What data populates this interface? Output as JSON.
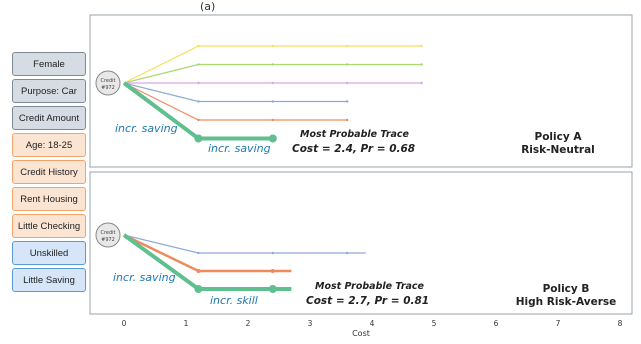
{
  "attributes": [
    {
      "label": "Female",
      "group": "gray"
    },
    {
      "label": "Purpose: Car",
      "group": "gray"
    },
    {
      "label": "Credit Amount",
      "group": "gray"
    },
    {
      "label": "Age: 18-25",
      "group": "orange"
    },
    {
      "label": "Credit History",
      "group": "orange"
    },
    {
      "label": "Rent Housing",
      "group": "orange"
    },
    {
      "label": "Little Checking",
      "group": "orange"
    },
    {
      "label": "Unskilled",
      "group": "blue"
    },
    {
      "label": "Little Saving",
      "group": "blue"
    }
  ],
  "top_text": "(a)",
  "panels": [
    {
      "node_label": [
        "Credit",
        "#972"
      ],
      "policy_line1": "Policy A",
      "policy_line2": "Risk-Neutral",
      "trace_title": "Most Probable Trace",
      "trace_cost": "Cost = 2.4, Pr = 0.68",
      "action1": "incr. saving",
      "action2": "incr. saving",
      "traces": [
        {
          "color": "#f2e25a",
          "points": [
            [
              0,
              0
            ],
            [
              1.2,
              -1
            ],
            [
              4.8,
              -1
            ]
          ]
        },
        {
          "color": "#a8d86e",
          "points": [
            [
              0,
              0
            ],
            [
              1.2,
              -0.5
            ],
            [
              4.8,
              -0.5
            ]
          ]
        },
        {
          "color": "#d9a6e0",
          "points": [
            [
              0,
              0
            ],
            [
              1.2,
              0
            ],
            [
              4.8,
              0
            ]
          ]
        },
        {
          "color": "#8fa8d8",
          "points": [
            [
              0,
              0
            ],
            [
              1.2,
              0.5
            ],
            [
              3.6,
              0.5
            ]
          ]
        },
        {
          "color": "#f08a5d",
          "points": [
            [
              0,
              0
            ],
            [
              1.2,
              1
            ],
            [
              3.6,
              1
            ]
          ]
        },
        {
          "color": "#5fbf8f",
          "points": [
            [
              0,
              0
            ],
            [
              1.2,
              1.5
            ],
            [
              2.4,
              1.5
            ]
          ],
          "highlight": true
        }
      ]
    },
    {
      "node_label": [
        "Credit",
        "#972"
      ],
      "policy_line1": "Policy B",
      "policy_line2": "High Risk-Averse",
      "trace_title": "Most Probable Trace",
      "trace_cost": "Cost = 2.7, Pr = 0.81",
      "action1": "incr. saving",
      "action2": "incr. skill",
      "traces": [
        {
          "color": "#8fa8d8",
          "points": [
            [
              0,
              0
            ],
            [
              1.2,
              0.5
            ],
            [
              3.9,
              0.5
            ]
          ]
        },
        {
          "color": "#f08a5d",
          "points": [
            [
              0,
              0
            ],
            [
              1.2,
              1
            ],
            [
              2.7,
              1
            ]
          ],
          "thick": true
        },
        {
          "color": "#5fbf8f",
          "points": [
            [
              0,
              0
            ],
            [
              1.2,
              1.5
            ],
            [
              2.7,
              1.5
            ]
          ],
          "highlight": true
        }
      ]
    }
  ],
  "axis": {
    "ticks": [
      "0",
      "1",
      "2",
      "3",
      "4",
      "5",
      "6",
      "7",
      "8"
    ],
    "label": "Cost"
  }
}
